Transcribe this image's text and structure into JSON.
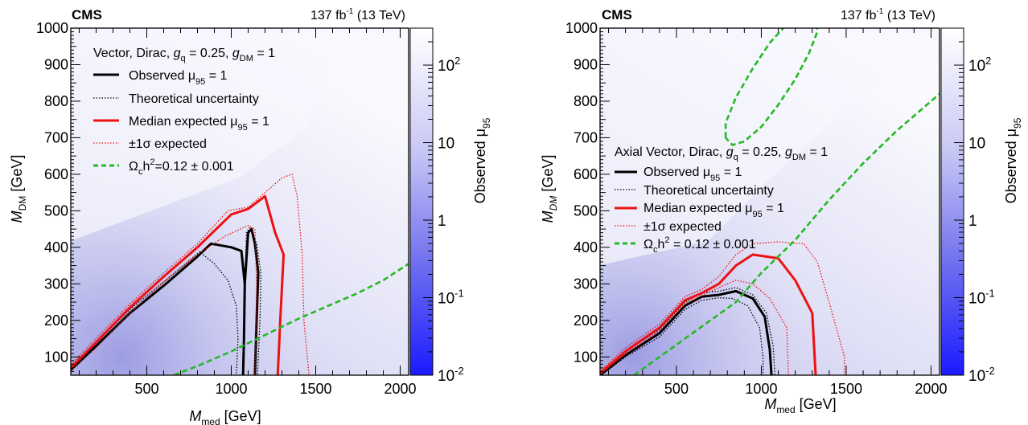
{
  "chart_data": [
    {
      "type": "heatmap",
      "experiment": "CMS",
      "luminosity_main": "137 fb",
      "luminosity_sup": "-1",
      "luminosity_tail": " (13 TeV)",
      "xlabel_main": "M",
      "xlabel_sub": "med",
      "xlabel_unit": " [GeV]",
      "ylabel_main": "M",
      "ylabel_sub": "DM",
      "ylabel_unit": " [GeV]",
      "xlim": [
        50,
        2050
      ],
      "ylim": [
        50,
        1000
      ],
      "xticks": [
        500,
        1000,
        1500,
        2000
      ],
      "yticks": [
        100,
        200,
        300,
        400,
        500,
        600,
        700,
        800,
        900,
        1000
      ],
      "legend_title": "Vector, Dirac,  g_q = 0.25,  g_DM = 1",
      "legend": [
        {
          "label": "Observed  μ95 = 1",
          "color": "#000000",
          "style": "solid"
        },
        {
          "label": "Theoretical uncertainty",
          "color": "#000000",
          "style": "dotted"
        },
        {
          "label": "Median expected  μ95 = 1",
          "color": "#ee1111",
          "style": "solid"
        },
        {
          "label": "±1σ expected",
          "color": "#ee1111",
          "style": "dotted"
        },
        {
          "label": "Ωch²=0.12  ± 0.001",
          "color": "#22bb22",
          "style": "dashed"
        }
      ],
      "series": [
        {
          "role": "observed",
          "color": "#000000",
          "style": "solid",
          "points": [
            [
              50,
              65
            ],
            [
              200,
              130
            ],
            [
              400,
              220
            ],
            [
              600,
              295
            ],
            [
              800,
              375
            ],
            [
              880,
              410
            ],
            [
              1000,
              400
            ],
            [
              1060,
              390
            ],
            [
              1080,
              300
            ],
            [
              1075,
              150
            ],
            [
              1070,
              50
            ]
          ]
        },
        {
          "role": "theory-up",
          "color": "#000000",
          "style": "dotted",
          "points": [
            [
              50,
              75
            ],
            [
              200,
              140
            ],
            [
              400,
              230
            ],
            [
              600,
              305
            ],
            [
              780,
              375
            ],
            [
              820,
              390
            ]
          ]
        },
        {
          "role": "theory-down",
          "color": "#000000",
          "style": "dotted",
          "points": [
            [
              820,
              385
            ],
            [
              900,
              355
            ],
            [
              980,
              310
            ],
            [
              1030,
              240
            ],
            [
              1040,
              150
            ],
            [
              1030,
              50
            ]
          ]
        },
        {
          "role": "theory-branch",
          "color": "#000000",
          "style": "dotted",
          "points": [
            [
              1080,
              300
            ],
            [
              1090,
              440
            ],
            [
              1110,
              455
            ],
            [
              1150,
              410
            ],
            [
              1175,
              330
            ],
            [
              1170,
              200
            ],
            [
              1155,
              50
            ]
          ]
        },
        {
          "role": "observed-branch",
          "color": "#000000",
          "style": "solid",
          "points": [
            [
              1080,
              300
            ],
            [
              1100,
              440
            ],
            [
              1120,
              450
            ],
            [
              1140,
              410
            ],
            [
              1160,
              330
            ],
            [
              1150,
              200
            ],
            [
              1140,
              50
            ]
          ]
        },
        {
          "role": "expected",
          "color": "#ee1111",
          "style": "solid",
          "points": [
            [
              50,
              70
            ],
            [
              200,
              140
            ],
            [
              400,
              235
            ],
            [
              600,
              320
            ],
            [
              800,
              400
            ],
            [
              1000,
              490
            ],
            [
              1100,
              505
            ],
            [
              1200,
              540
            ],
            [
              1260,
              440
            ],
            [
              1310,
              380
            ],
            [
              1290,
              200
            ],
            [
              1275,
              50
            ]
          ]
        },
        {
          "role": "exp-plus",
          "color": "#ee1111",
          "style": "dotted",
          "points": [
            [
              50,
              80
            ],
            [
              200,
              150
            ],
            [
              400,
              245
            ],
            [
              600,
              330
            ],
            [
              800,
              410
            ],
            [
              980,
              500
            ],
            [
              1100,
              510
            ],
            [
              1200,
              550
            ],
            [
              1300,
              590
            ],
            [
              1360,
              600
            ],
            [
              1390,
              540
            ],
            [
              1420,
              380
            ],
            [
              1430,
              200
            ],
            [
              1460,
              50
            ]
          ]
        },
        {
          "role": "exp-minus",
          "color": "#ee1111",
          "style": "dotted",
          "points": [
            [
              50,
              60
            ],
            [
              200,
              125
            ],
            [
              400,
              220
            ],
            [
              600,
              305
            ],
            [
              800,
              380
            ],
            [
              960,
              430
            ],
            [
              1100,
              460
            ],
            [
              1140,
              450
            ],
            [
              1150,
              300
            ],
            [
              1145,
              150
            ],
            [
              1140,
              50
            ]
          ]
        },
        {
          "role": "relic",
          "color": "#22bb22",
          "style": "dashed",
          "points": [
            [
              660,
              50
            ],
            [
              800,
              75
            ],
            [
              1000,
              115
            ],
            [
              1200,
              160
            ],
            [
              1400,
              205
            ],
            [
              1600,
              245
            ],
            [
              1750,
              275
            ],
            [
              1900,
              310
            ],
            [
              2050,
              355
            ]
          ]
        }
      ],
      "colorbar": {
        "label": "Observed  μ95",
        "scale": "log",
        "range": [
          0.01,
          300
        ],
        "ticks": [
          "10^-2",
          "10^-1",
          "1",
          "10",
          "10^2"
        ],
        "colors": [
          "#1a1aff",
          "#ffffff"
        ]
      }
    },
    {
      "type": "heatmap",
      "experiment": "CMS",
      "luminosity_main": "137 fb",
      "luminosity_sup": "-1",
      "luminosity_tail": " (13 TeV)",
      "xlabel_main": "M",
      "xlabel_sub": "med",
      "xlabel_unit": " [GeV]",
      "ylabel_main": "M",
      "ylabel_sub": "DM",
      "ylabel_unit": " [GeV]",
      "xlim": [
        50,
        2050
      ],
      "ylim": [
        50,
        1000
      ],
      "xticks": [
        500,
        1000,
        1500,
        2000
      ],
      "yticks": [
        100,
        200,
        300,
        400,
        500,
        600,
        700,
        800,
        900,
        1000
      ],
      "legend_title": "Axial Vector, Dirac,  g_q = 0.25,  g_DM = 1",
      "legend": [
        {
          "label": "Observed  μ95 = 1",
          "color": "#000000",
          "style": "solid"
        },
        {
          "label": "Theoretical uncertainty",
          "color": "#000000",
          "style": "dotted"
        },
        {
          "label": "Median expected  μ95 = 1",
          "color": "#ee1111",
          "style": "solid"
        },
        {
          "label": "±1σ expected",
          "color": "#ee1111",
          "style": "dotted"
        },
        {
          "label": "Ωch² = 0.12  ± 0.001",
          "color": "#22bb22",
          "style": "dashed"
        }
      ],
      "series": [
        {
          "role": "observed",
          "color": "#000000",
          "style": "solid",
          "points": [
            [
              50,
              50
            ],
            [
              200,
              105
            ],
            [
              400,
              165
            ],
            [
              550,
              240
            ],
            [
              650,
              265
            ],
            [
              750,
              270
            ],
            [
              850,
              280
            ],
            [
              950,
              260
            ],
            [
              1020,
              210
            ],
            [
              1050,
              120
            ],
            [
              1060,
              50
            ]
          ]
        },
        {
          "role": "theory-up",
          "color": "#000000",
          "style": "dotted",
          "points": [
            [
              50,
              55
            ],
            [
              200,
              115
            ],
            [
              400,
              175
            ],
            [
              550,
              250
            ],
            [
              650,
              275
            ],
            [
              750,
              280
            ],
            [
              850,
              290
            ],
            [
              950,
              270
            ],
            [
              1030,
              220
            ],
            [
              1070,
              130
            ],
            [
              1080,
              50
            ]
          ]
        },
        {
          "role": "theory-down",
          "color": "#000000",
          "style": "dotted",
          "points": [
            [
              50,
              48
            ],
            [
              200,
              100
            ],
            [
              400,
              155
            ],
            [
              550,
              230
            ],
            [
              650,
              255
            ],
            [
              750,
              262
            ],
            [
              830,
              260
            ],
            [
              920,
              240
            ],
            [
              990,
              180
            ],
            [
              1010,
              100
            ],
            [
              1010,
              50
            ]
          ]
        },
        {
          "role": "expected",
          "color": "#ee1111",
          "style": "solid",
          "points": [
            [
              50,
              55
            ],
            [
              200,
              115
            ],
            [
              400,
              180
            ],
            [
              550,
              255
            ],
            [
              650,
              275
            ],
            [
              750,
              300
            ],
            [
              850,
              350
            ],
            [
              950,
              380
            ],
            [
              1100,
              370
            ],
            [
              1200,
              310
            ],
            [
              1300,
              220
            ],
            [
              1320,
              50
            ]
          ]
        },
        {
          "role": "exp-plus",
          "color": "#ee1111",
          "style": "dotted",
          "points": [
            [
              50,
              60
            ],
            [
              200,
              125
            ],
            [
              400,
              190
            ],
            [
              550,
              265
            ],
            [
              650,
              285
            ],
            [
              750,
              320
            ],
            [
              850,
              380
            ],
            [
              950,
              410
            ],
            [
              1100,
              415
            ],
            [
              1250,
              410
            ],
            [
              1330,
              360
            ],
            [
              1400,
              250
            ],
            [
              1490,
              100
            ],
            [
              1490,
              50
            ]
          ]
        },
        {
          "role": "exp-minus",
          "color": "#ee1111",
          "style": "dotted",
          "points": [
            [
              50,
              52
            ],
            [
              200,
              108
            ],
            [
              400,
              170
            ],
            [
              550,
              245
            ],
            [
              650,
              268
            ],
            [
              750,
              290
            ],
            [
              850,
              310
            ],
            [
              950,
              300
            ],
            [
              1050,
              260
            ],
            [
              1150,
              180
            ],
            [
              1160,
              50
            ]
          ]
        },
        {
          "role": "relic-diagonal",
          "color": "#22bb22",
          "style": "dashed",
          "points": [
            [
              250,
              50
            ],
            [
              400,
              100
            ],
            [
              550,
              150
            ],
            [
              700,
              200
            ],
            [
              850,
              250
            ],
            [
              1000,
              330
            ],
            [
              1200,
              420
            ],
            [
              1400,
              530
            ],
            [
              1600,
              630
            ],
            [
              1800,
              720
            ],
            [
              2050,
              820
            ]
          ]
        },
        {
          "role": "relic-ellipse",
          "color": "#22bb22",
          "style": "dashed",
          "closed": true,
          "points": [
            [
              790,
              700
            ],
            [
              790,
              740
            ],
            [
              850,
              810
            ],
            [
              950,
              890
            ],
            [
              1050,
              960
            ],
            [
              1150,
              1010
            ],
            [
              1250,
              1050
            ],
            [
              1320,
              1040
            ],
            [
              1330,
              990
            ],
            [
              1280,
              930
            ],
            [
              1200,
              860
            ],
            [
              1100,
              790
            ],
            [
              1000,
              730
            ],
            [
              900,
              690
            ],
            [
              830,
              680
            ]
          ]
        }
      ],
      "colorbar": {
        "label": "Observed  μ95",
        "scale": "log",
        "range": [
          0.01,
          300
        ],
        "ticks": [
          "10^-2",
          "10^-1",
          "1",
          "10",
          "10^2"
        ],
        "colors": [
          "#1a1aff",
          "#ffffff"
        ]
      }
    }
  ]
}
